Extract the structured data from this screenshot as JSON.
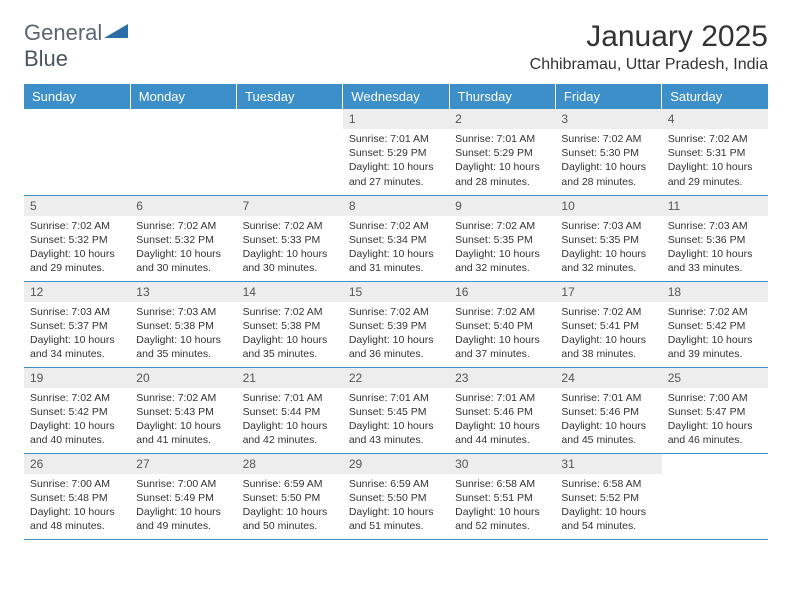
{
  "logo": {
    "text1": "General",
    "text2": "Blue"
  },
  "title": "January 2025",
  "location": "Chhibramau, Uttar Pradesh, India",
  "colors": {
    "header_bg": "#3d8fc9",
    "header_text": "#ffffff",
    "daynum_bg": "#ededed",
    "text": "#333333",
    "logo_gray": "#5a6570",
    "logo_blue": "#2b6ea8",
    "row_border": "#3d8fc9",
    "background": "#ffffff"
  },
  "typography": {
    "title_fontsize": 30,
    "location_fontsize": 16,
    "weekday_fontsize": 13,
    "daynum_fontsize": 12,
    "info_fontsize": 10.5
  },
  "weekdays": [
    "Sunday",
    "Monday",
    "Tuesday",
    "Wednesday",
    "Thursday",
    "Friday",
    "Saturday"
  ],
  "weeks": [
    [
      null,
      null,
      null,
      {
        "n": "1",
        "sr": "7:01 AM",
        "ss": "5:29 PM",
        "dl": "10 hours and 27 minutes."
      },
      {
        "n": "2",
        "sr": "7:01 AM",
        "ss": "5:29 PM",
        "dl": "10 hours and 28 minutes."
      },
      {
        "n": "3",
        "sr": "7:02 AM",
        "ss": "5:30 PM",
        "dl": "10 hours and 28 minutes."
      },
      {
        "n": "4",
        "sr": "7:02 AM",
        "ss": "5:31 PM",
        "dl": "10 hours and 29 minutes."
      }
    ],
    [
      {
        "n": "5",
        "sr": "7:02 AM",
        "ss": "5:32 PM",
        "dl": "10 hours and 29 minutes."
      },
      {
        "n": "6",
        "sr": "7:02 AM",
        "ss": "5:32 PM",
        "dl": "10 hours and 30 minutes."
      },
      {
        "n": "7",
        "sr": "7:02 AM",
        "ss": "5:33 PM",
        "dl": "10 hours and 30 minutes."
      },
      {
        "n": "8",
        "sr": "7:02 AM",
        "ss": "5:34 PM",
        "dl": "10 hours and 31 minutes."
      },
      {
        "n": "9",
        "sr": "7:02 AM",
        "ss": "5:35 PM",
        "dl": "10 hours and 32 minutes."
      },
      {
        "n": "10",
        "sr": "7:03 AM",
        "ss": "5:35 PM",
        "dl": "10 hours and 32 minutes."
      },
      {
        "n": "11",
        "sr": "7:03 AM",
        "ss": "5:36 PM",
        "dl": "10 hours and 33 minutes."
      }
    ],
    [
      {
        "n": "12",
        "sr": "7:03 AM",
        "ss": "5:37 PM",
        "dl": "10 hours and 34 minutes."
      },
      {
        "n": "13",
        "sr": "7:03 AM",
        "ss": "5:38 PM",
        "dl": "10 hours and 35 minutes."
      },
      {
        "n": "14",
        "sr": "7:02 AM",
        "ss": "5:38 PM",
        "dl": "10 hours and 35 minutes."
      },
      {
        "n": "15",
        "sr": "7:02 AM",
        "ss": "5:39 PM",
        "dl": "10 hours and 36 minutes."
      },
      {
        "n": "16",
        "sr": "7:02 AM",
        "ss": "5:40 PM",
        "dl": "10 hours and 37 minutes."
      },
      {
        "n": "17",
        "sr": "7:02 AM",
        "ss": "5:41 PM",
        "dl": "10 hours and 38 minutes."
      },
      {
        "n": "18",
        "sr": "7:02 AM",
        "ss": "5:42 PM",
        "dl": "10 hours and 39 minutes."
      }
    ],
    [
      {
        "n": "19",
        "sr": "7:02 AM",
        "ss": "5:42 PM",
        "dl": "10 hours and 40 minutes."
      },
      {
        "n": "20",
        "sr": "7:02 AM",
        "ss": "5:43 PM",
        "dl": "10 hours and 41 minutes."
      },
      {
        "n": "21",
        "sr": "7:01 AM",
        "ss": "5:44 PM",
        "dl": "10 hours and 42 minutes."
      },
      {
        "n": "22",
        "sr": "7:01 AM",
        "ss": "5:45 PM",
        "dl": "10 hours and 43 minutes."
      },
      {
        "n": "23",
        "sr": "7:01 AM",
        "ss": "5:46 PM",
        "dl": "10 hours and 44 minutes."
      },
      {
        "n": "24",
        "sr": "7:01 AM",
        "ss": "5:46 PM",
        "dl": "10 hours and 45 minutes."
      },
      {
        "n": "25",
        "sr": "7:00 AM",
        "ss": "5:47 PM",
        "dl": "10 hours and 46 minutes."
      }
    ],
    [
      {
        "n": "26",
        "sr": "7:00 AM",
        "ss": "5:48 PM",
        "dl": "10 hours and 48 minutes."
      },
      {
        "n": "27",
        "sr": "7:00 AM",
        "ss": "5:49 PM",
        "dl": "10 hours and 49 minutes."
      },
      {
        "n": "28",
        "sr": "6:59 AM",
        "ss": "5:50 PM",
        "dl": "10 hours and 50 minutes."
      },
      {
        "n": "29",
        "sr": "6:59 AM",
        "ss": "5:50 PM",
        "dl": "10 hours and 51 minutes."
      },
      {
        "n": "30",
        "sr": "6:58 AM",
        "ss": "5:51 PM",
        "dl": "10 hours and 52 minutes."
      },
      {
        "n": "31",
        "sr": "6:58 AM",
        "ss": "5:52 PM",
        "dl": "10 hours and 54 minutes."
      },
      null
    ]
  ],
  "labels": {
    "sunrise": "Sunrise:",
    "sunset": "Sunset:",
    "daylight": "Daylight:"
  }
}
